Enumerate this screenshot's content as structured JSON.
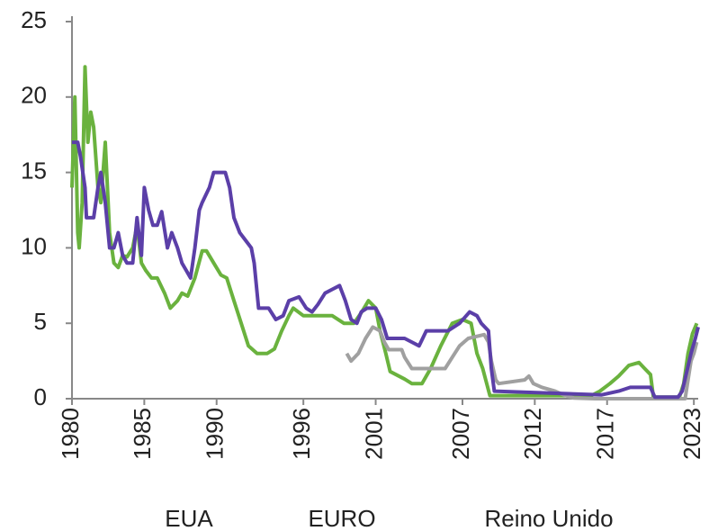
{
  "chart_data": {
    "type": "line",
    "xlim": [
      1980,
      2023.3
    ],
    "xticks": [
      1980,
      1985,
      1990,
      1996,
      2001,
      2007,
      2012,
      2017,
      2023
    ],
    "ylim": [
      0,
      25
    ],
    "yticks": [
      0,
      5,
      10,
      15,
      20,
      25
    ],
    "series": [
      {
        "name": "EUA",
        "color": "#6ab23e",
        "x": [
          1980.0,
          1980.2,
          1980.4,
          1980.5,
          1980.7,
          1980.9,
          1981.1,
          1981.3,
          1981.5,
          1981.8,
          1982.0,
          1982.3,
          1982.6,
          1982.9,
          1983.2,
          1983.5,
          1983.8,
          1984.2,
          1984.5,
          1984.8,
          1985.1,
          1985.5,
          1985.9,
          1986.4,
          1986.8,
          1987.3,
          1987.6,
          1988.0,
          1988.5,
          1989.0,
          1989.3,
          1989.8,
          1990.3,
          1990.7,
          1991.2,
          1991.7,
          1992.2,
          1992.8,
          1993.5,
          1994.0,
          1994.5,
          1995.0,
          1995.3,
          1996.0,
          1997.0,
          1998.0,
          1998.8,
          1999.5,
          2000.0,
          2000.5,
          2001.0,
          2001.3,
          2001.7,
          2002.0,
          2003.0,
          2003.5,
          2004.2,
          2004.8,
          2005.5,
          2006.3,
          2007.0,
          2007.6,
          2008.0,
          2008.4,
          2008.9,
          2015.9,
          2016.5,
          2017.2,
          2017.8,
          2018.5,
          2019.2,
          2019.6,
          2020.0,
          2020.2,
          2022.0,
          2022.3,
          2022.6,
          2022.9,
          2023.2
        ],
        "values": [
          14,
          20,
          11,
          10,
          13,
          22,
          17,
          19,
          18,
          14,
          13,
          17,
          11,
          9,
          8.7,
          9.5,
          9.4,
          10,
          11.5,
          9,
          8.5,
          8,
          8,
          7,
          6,
          6.5,
          7,
          6.8,
          8,
          9.8,
          9.8,
          9,
          8.2,
          8,
          6.5,
          5,
          3.5,
          3,
          3,
          3.3,
          4.5,
          5.5,
          6,
          5.5,
          5.5,
          5.5,
          5,
          5,
          5.7,
          6.5,
          6,
          4.5,
          3,
          1.8,
          1.3,
          1,
          1,
          2,
          3.5,
          5,
          5.25,
          5,
          3,
          2,
          0.2,
          0.2,
          0.5,
          1,
          1.5,
          2.2,
          2.4,
          2,
          1.6,
          0.1,
          0.1,
          1,
          3,
          4.3,
          5
        ]
      },
      {
        "name": "EURO",
        "color": "#a0a0a0",
        "x": [
          1999.0,
          1999.3,
          1999.8,
          2000.3,
          2000.8,
          2001.3,
          2001.6,
          2001.9,
          2002.8,
          2003.0,
          2003.5,
          2005.8,
          2006.3,
          2006.8,
          2007.4,
          2008.5,
          2008.8,
          2009.0,
          2009.3,
          2009.5,
          2011.3,
          2011.6,
          2011.9,
          2012.5,
          2013.4,
          2014.0,
          2014.7,
          2016.2,
          2022.4,
          2022.6,
          2022.8,
          2023.0,
          2023.2
        ],
        "values": [
          3,
          2.5,
          3,
          4,
          4.75,
          4.5,
          3.75,
          3.25,
          3.25,
          2.75,
          2,
          2,
          2.75,
          3.5,
          4,
          4.25,
          3.75,
          2.5,
          1.25,
          1,
          1.25,
          1.5,
          1,
          0.75,
          0.5,
          0.25,
          0.05,
          0,
          0,
          1.25,
          2.5,
          3,
          3.75
        ]
      },
      {
        "name": "Reino Unido",
        "color": "#5b3fa8",
        "x": [
          1980.0,
          1980.4,
          1980.6,
          1980.9,
          1981.0,
          1981.5,
          1981.8,
          1982.0,
          1982.3,
          1982.6,
          1982.9,
          1983.2,
          1983.5,
          1983.8,
          1984.2,
          1984.5,
          1984.8,
          1985.0,
          1985.3,
          1985.6,
          1985.9,
          1986.2,
          1986.6,
          1986.9,
          1987.3,
          1987.6,
          1987.9,
          1988.2,
          1988.5,
          1988.8,
          1989.0,
          1989.5,
          1989.8,
          1990.6,
          1990.9,
          1991.2,
          1991.6,
          1992.0,
          1992.4,
          1992.6,
          1992.9,
          1993.6,
          1994.1,
          1994.6,
          1995.0,
          1995.7,
          1996.2,
          1996.6,
          1997.0,
          1997.5,
          1998.0,
          1998.5,
          1998.9,
          1999.3,
          1999.7,
          2000.0,
          2000.4,
          2001.0,
          2001.4,
          2001.8,
          2003.0,
          2003.5,
          2004.0,
          2004.5,
          2005.5,
          2006.0,
          2006.8,
          2007.5,
          2008.0,
          2008.3,
          2008.8,
          2009.0,
          2009.2,
          2016.6,
          2017.8,
          2018.6,
          2020.0,
          2020.3,
          2021.9,
          2022.2,
          2022.5,
          2022.8,
          2023.1,
          2023.3
        ],
        "values": [
          17,
          17,
          16,
          14,
          12,
          12,
          14,
          15,
          13,
          10,
          10,
          11,
          9.5,
          9,
          9,
          12,
          9.5,
          14,
          12.5,
          11.5,
          11.5,
          12.4,
          10,
          11,
          10,
          9,
          8.5,
          8,
          10,
          12.5,
          13,
          14,
          15,
          15,
          14,
          12,
          11,
          10.5,
          10,
          9,
          6,
          6,
          5.25,
          5.5,
          6.5,
          6.75,
          6,
          5.75,
          6.25,
          7,
          7.25,
          7.5,
          6.5,
          5.25,
          5,
          5.75,
          6,
          6,
          5.25,
          4,
          4,
          3.75,
          3.5,
          4.5,
          4.5,
          4.5,
          5,
          5.75,
          5.5,
          5,
          4.5,
          2,
          0.5,
          0.25,
          0.5,
          0.75,
          0.75,
          0.1,
          0.1,
          0.5,
          1.75,
          3,
          4,
          4.75
        ]
      }
    ]
  }
}
